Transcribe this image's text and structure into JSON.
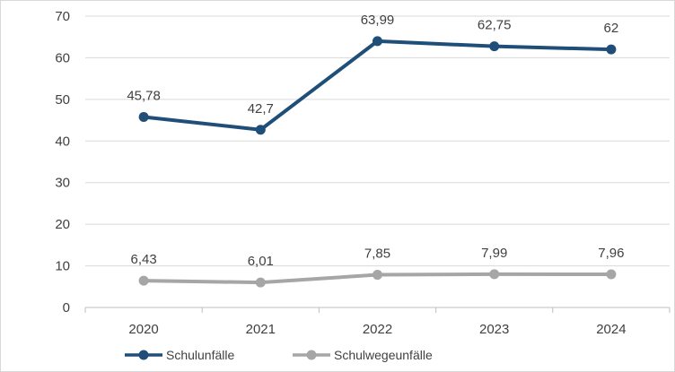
{
  "chart_data": {
    "type": "line",
    "title": "",
    "xlabel": "",
    "ylabel": "",
    "categories": [
      "2020",
      "2021",
      "2022",
      "2023",
      "2024"
    ],
    "ylim": [
      0,
      70
    ],
    "yticks": [
      0,
      10,
      20,
      30,
      40,
      50,
      60,
      70
    ],
    "grid": true,
    "legend_position": "bottom-left",
    "series": [
      {
        "name": "Schulunfälle",
        "values": [
          45.78,
          42.7,
          63.99,
          62.75,
          62
        ],
        "labels": [
          "45,78",
          "42,7",
          "63,99",
          "62,75",
          "62"
        ],
        "color": "#1f4e79"
      },
      {
        "name": "Schulwegeunfälle",
        "values": [
          6.43,
          6.01,
          7.85,
          7.99,
          7.96
        ],
        "labels": [
          "6,43",
          "6,01",
          "7,85",
          "7,99",
          "7,96"
        ],
        "color": "#a6a6a6"
      }
    ],
    "colors": {
      "grid": "#d9d9d9",
      "axis": "#bfbfbf",
      "text": "#404040"
    }
  }
}
